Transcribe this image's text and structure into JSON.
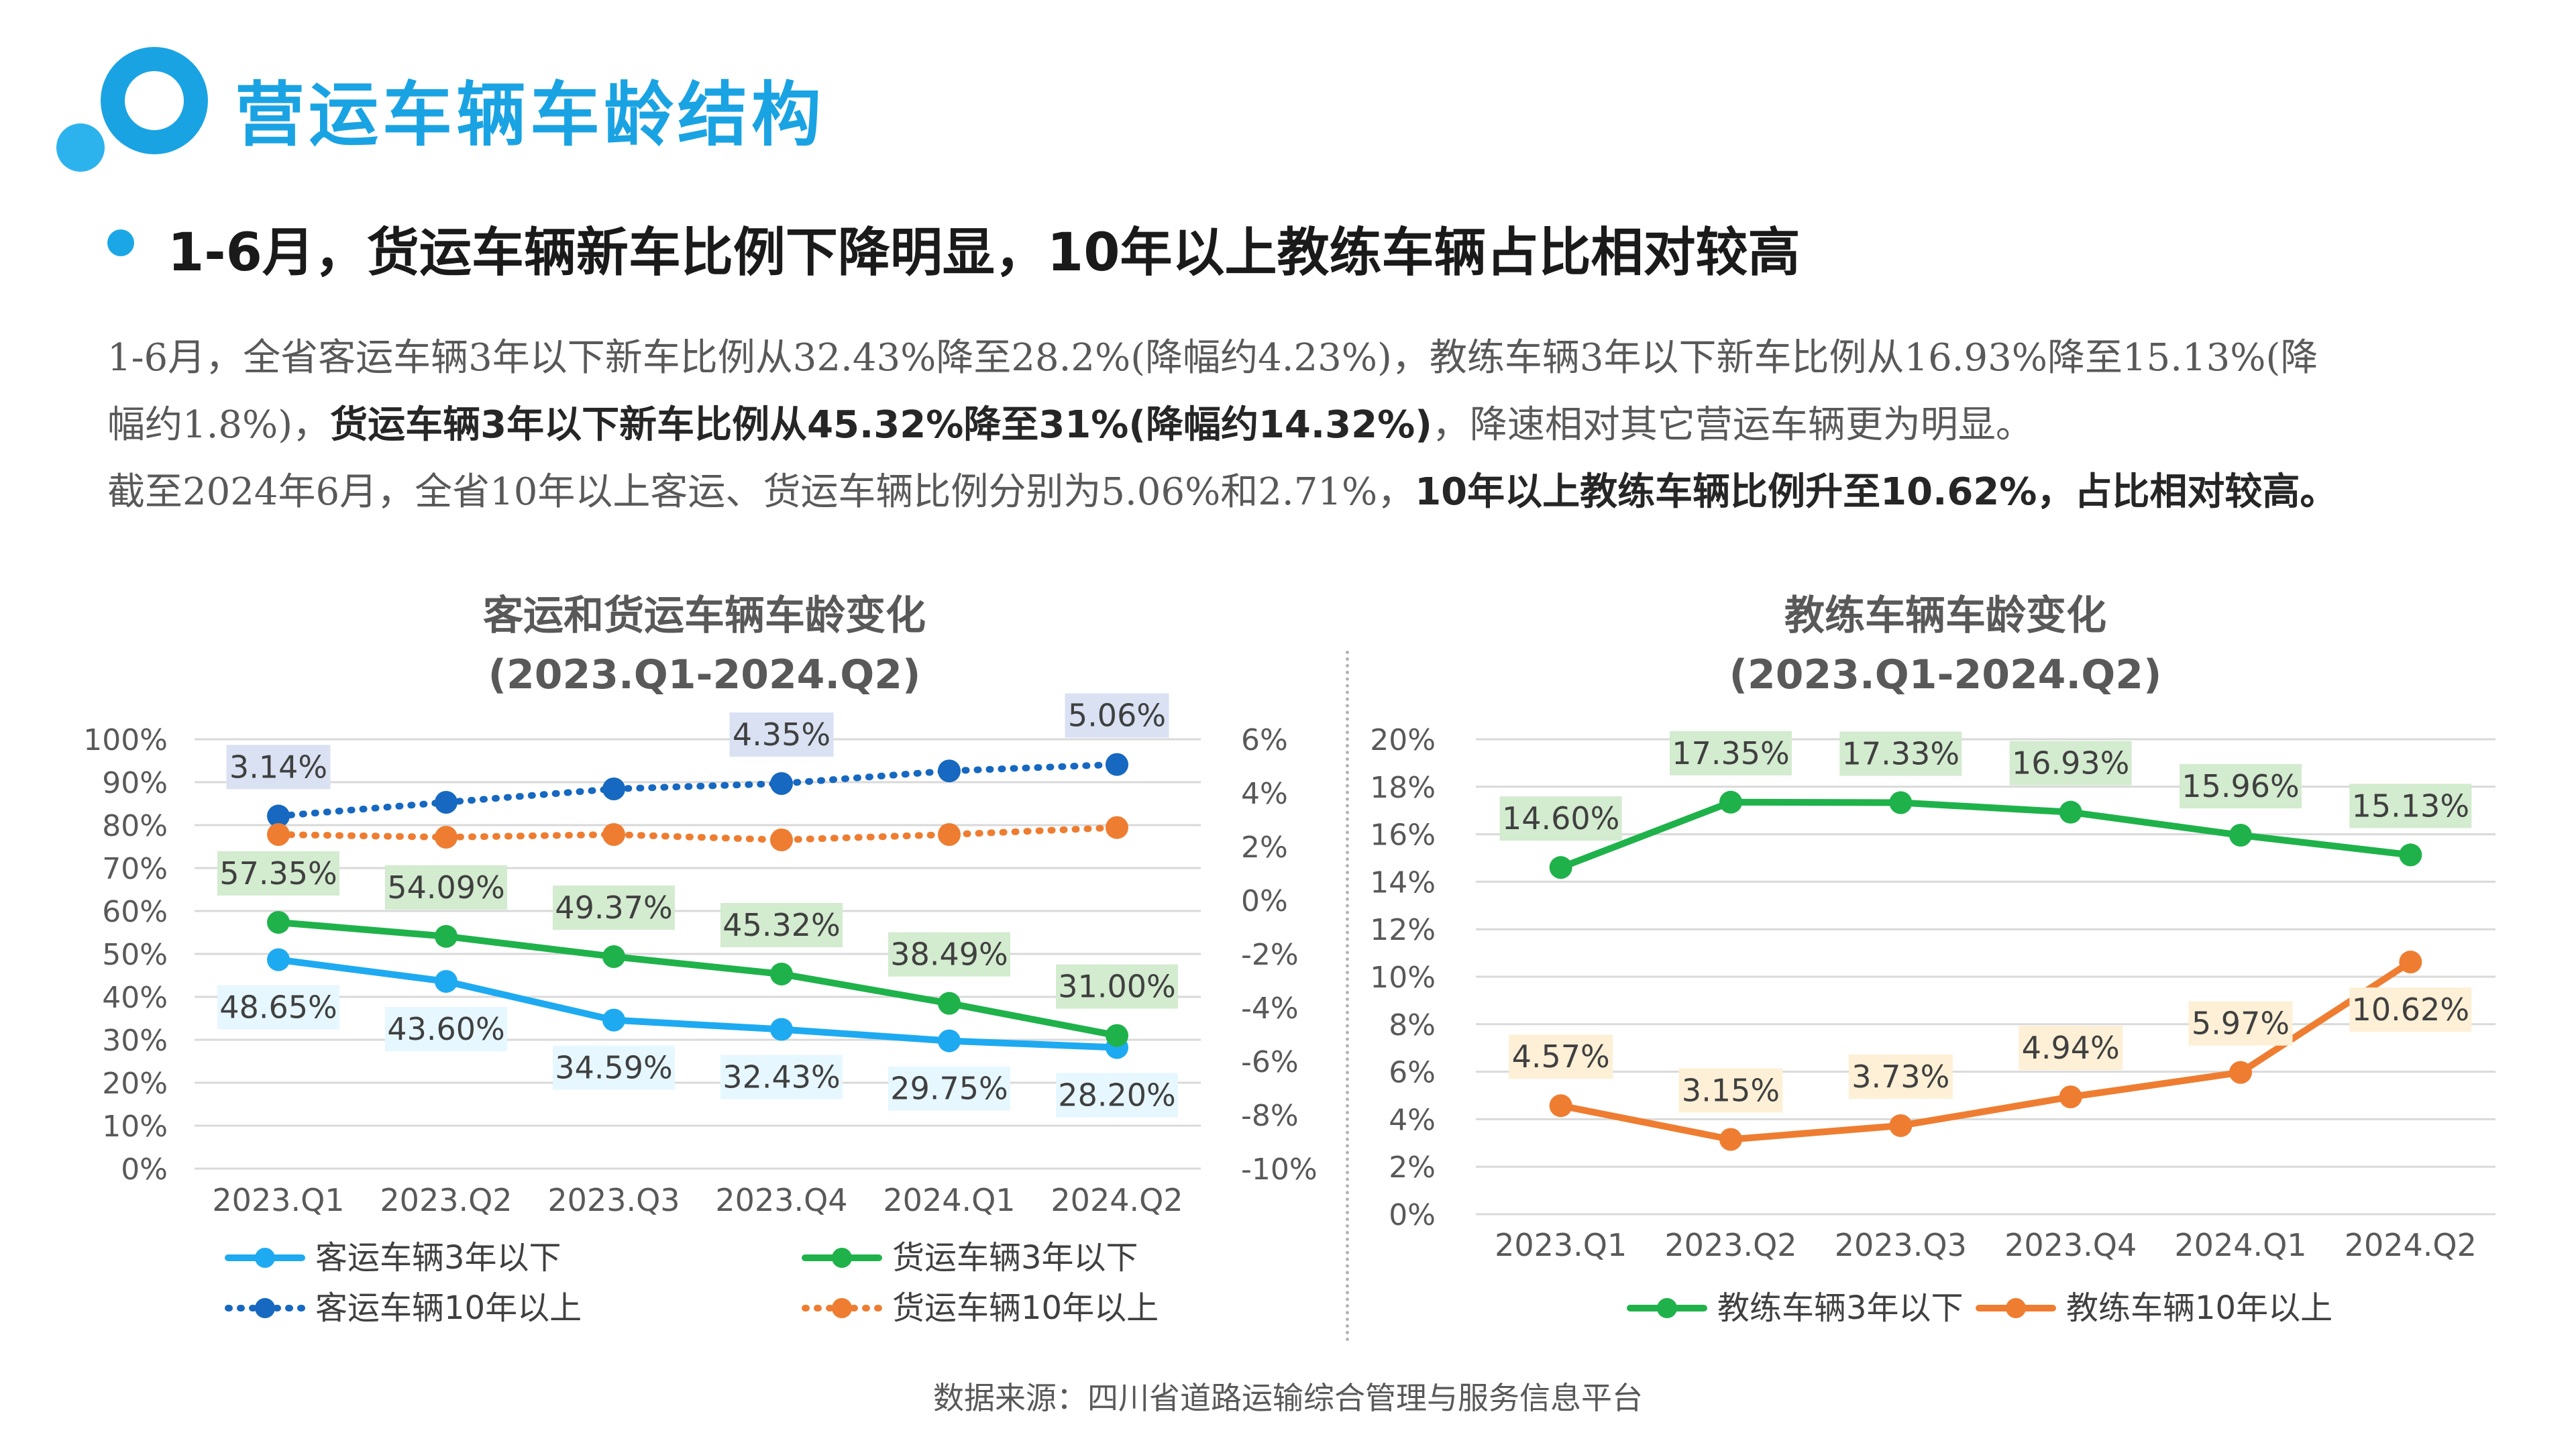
{
  "page": {
    "title": "营运车辆车龄结构",
    "headline": "1-6月，货运车辆新车比例下降明显，10年以上教练车辆占比相对较高",
    "para1_plain_a": "1-6月，全省客运车辆3年以下新车比例从32.43%降至28.2%(降幅约4.23%)，教练车辆3年以下新车比例从16.93%降至15.13%(降",
    "para1_plain_b": "幅约1.8%)，",
    "para1_bold": "货运车辆3年以下新车比例从45.32%降至31%(降幅约14.32%)",
    "para1_tail": "，降速相对其它营运车辆更为明显。",
    "para2_plain": "截至2024年6月，全省10年以上客运、货运车辆比例分别为5.06%和2.71%，",
    "para2_bold": "10年以上教练车辆比例升至10.62%，占比相对较高。",
    "source": "数据来源：四川省道路运输综合管理与服务信息平台"
  },
  "colors": {
    "brand": "#1aa3e3",
    "passenger_new": "#1eaaf1",
    "freight_new": "#1fb24a",
    "passenger_old": "#1668c0",
    "freight_old": "#ee7d31",
    "coach_new": "#1fb24a",
    "coach_old": "#ee7d31"
  },
  "chart_data": [
    {
      "type": "line",
      "title": "客运和货运车辆车龄变化",
      "subtitle": "(2023.Q1-2024.Q2)",
      "categories": [
        "2023.Q1",
        "2023.Q2",
        "2023.Q3",
        "2023.Q4",
        "2024.Q1",
        "2024.Q2"
      ],
      "y_ticks": [
        "100%",
        "90%",
        "80%",
        "70%",
        "60%",
        "50%",
        "40%",
        "30%",
        "20%",
        "10%",
        "0%"
      ],
      "y2_ticks": [
        "6%",
        "4%",
        "2%",
        "0%",
        "-2%",
        "-4%",
        "-6%",
        "-8%",
        "-10%"
      ],
      "ylim": [
        0,
        100
      ],
      "y2lim": [
        -10,
        6
      ],
      "grid": true,
      "legend_position": "bottom",
      "series": [
        {
          "name": "客运车辆3年以下",
          "axis": "left",
          "color": "#1eaaf1",
          "style": "solid",
          "values": [
            48.65,
            43.6,
            34.59,
            32.43,
            29.75,
            28.2
          ],
          "labels": [
            "48.65%",
            "43.60%",
            "34.59%",
            "32.43%",
            "29.75%",
            "28.20%"
          ],
          "label_positions": [
            "below",
            "below",
            "below",
            "below",
            "below",
            "below"
          ],
          "label_bg": "#e6f7ff"
        },
        {
          "name": "货运车辆3年以下",
          "axis": "left",
          "color": "#1fb24a",
          "style": "solid",
          "values": [
            57.35,
            54.09,
            49.37,
            45.32,
            38.49,
            31.0
          ],
          "labels": [
            "57.35%",
            "54.09%",
            "49.37%",
            "45.32%",
            "38.49%",
            "31.00%"
          ],
          "label_positions": [
            "above",
            "above",
            "above",
            "above",
            "above",
            "above"
          ],
          "label_bg": "#d3ebcf"
        },
        {
          "name": "客运车辆10年以上",
          "axis": "right",
          "color": "#1668c0",
          "style": "dotted",
          "values": [
            3.14,
            3.65,
            4.15,
            4.35,
            4.82,
            5.06
          ],
          "labels": [
            "3.14%",
            "",
            "",
            "4.35%",
            "",
            "5.06%"
          ],
          "label_positions": [
            "above",
            "above",
            "above",
            "above",
            "above",
            "above"
          ],
          "label_bg": "#d9e1f3"
        },
        {
          "name": "货运车辆10年以上",
          "axis": "right",
          "color": "#ee7d31",
          "style": "dotted",
          "values": [
            2.45,
            2.35,
            2.45,
            2.25,
            2.45,
            2.71
          ],
          "labels": [
            "",
            "",
            "",
            "",
            "",
            ""
          ],
          "label_positions": [
            "above",
            "above",
            "above",
            "above",
            "above",
            "above"
          ],
          "label_bg": "#fdf0d6"
        }
      ]
    },
    {
      "type": "line",
      "title": "教练车辆车龄变化",
      "subtitle": "(2023.Q1-2024.Q2)",
      "categories": [
        "2023.Q1",
        "2023.Q2",
        "2023.Q3",
        "2023.Q4",
        "2024.Q1",
        "2024.Q2"
      ],
      "y_ticks": [
        "20%",
        "18%",
        "16%",
        "14%",
        "12%",
        "10%",
        "8%",
        "6%",
        "4%",
        "2%",
        "0%"
      ],
      "ylim": [
        0,
        20
      ],
      "grid": true,
      "legend_position": "bottom",
      "series": [
        {
          "name": "教练车辆3年以下",
          "axis": "left",
          "color": "#1fb24a",
          "style": "solid",
          "values": [
            14.6,
            17.35,
            17.33,
            16.93,
            15.96,
            15.13
          ],
          "labels": [
            "14.60%",
            "17.35%",
            "17.33%",
            "16.93%",
            "15.96%",
            "15.13%"
          ],
          "label_positions": [
            "above",
            "above",
            "above",
            "above",
            "above",
            "above"
          ],
          "label_bg": "#d3ebcf"
        },
        {
          "name": "教练车辆10年以上",
          "axis": "left",
          "color": "#ee7d31",
          "style": "solid",
          "values": [
            4.57,
            3.15,
            3.73,
            4.94,
            5.97,
            10.62
          ],
          "labels": [
            "4.57%",
            "3.15%",
            "3.73%",
            "4.94%",
            "5.97%",
            "10.62%"
          ],
          "label_positions": [
            "above",
            "above",
            "above",
            "above",
            "above",
            "below"
          ],
          "label_bg": "#fdf0d6"
        }
      ]
    }
  ]
}
